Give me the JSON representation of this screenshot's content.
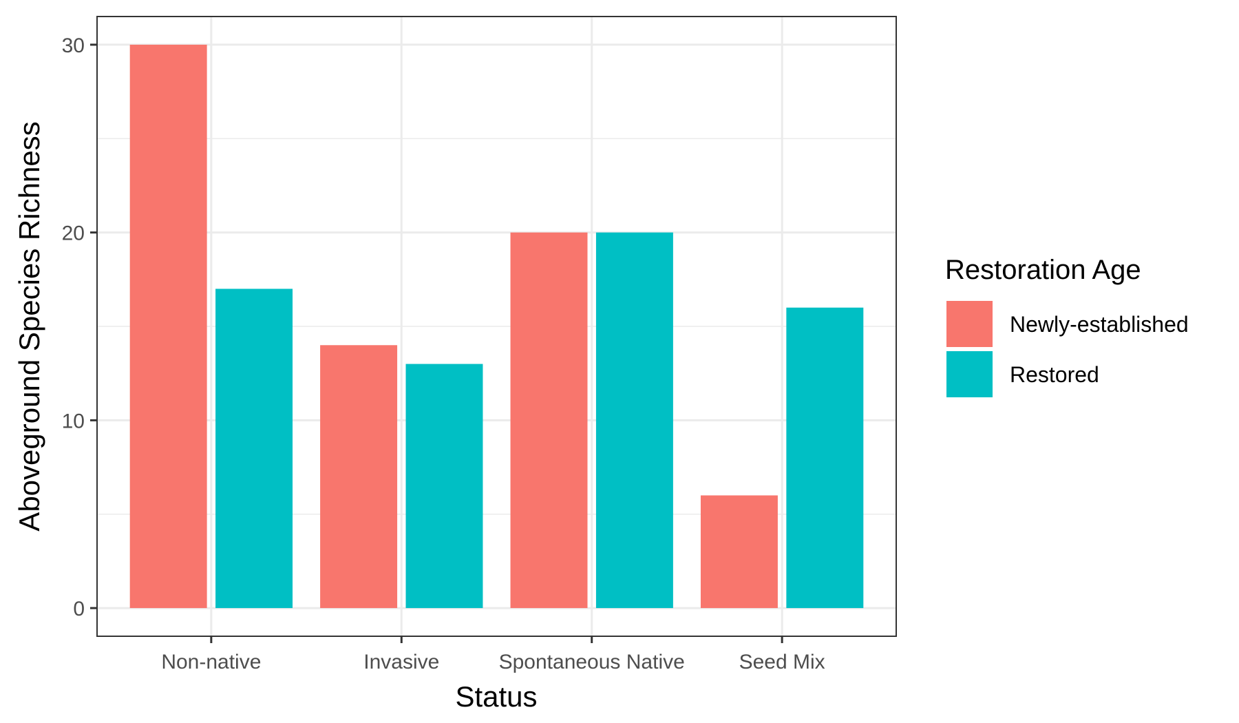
{
  "chart_data": {
    "type": "bar",
    "title": "",
    "xlabel": "Status",
    "ylabel": "Aboveground Species Richness",
    "categories": [
      "Non-native",
      "Invasive",
      "Spontaneous Native",
      "Seed Mix"
    ],
    "series": [
      {
        "name": "Newly-established",
        "color": "#F8766D",
        "values": [
          30,
          14,
          20,
          6
        ]
      },
      {
        "name": "Restored",
        "color": "#00BFC4",
        "values": [
          17,
          13,
          20,
          16
        ]
      }
    ],
    "yticks": [
      0,
      10,
      20,
      30
    ],
    "ylim": [
      -1.5,
      31.5
    ],
    "grid": true,
    "legend": {
      "title": "Restoration Age",
      "position": "right"
    }
  }
}
